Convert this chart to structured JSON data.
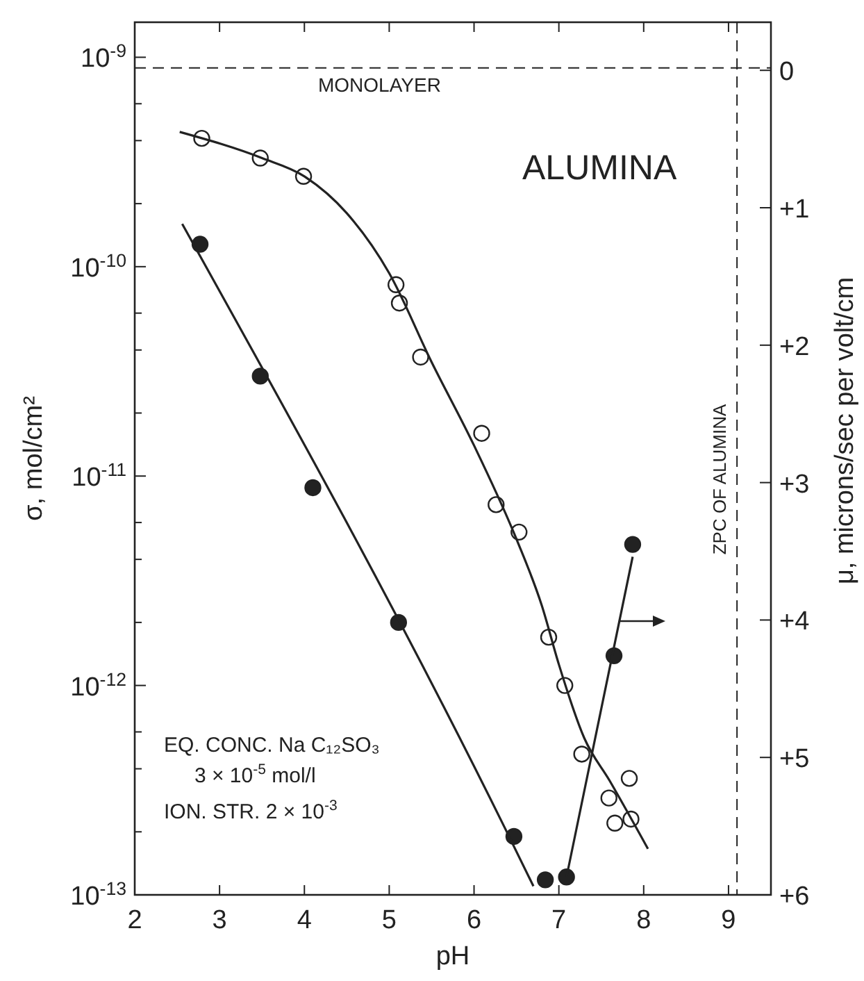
{
  "chart_data": {
    "type": "scatter",
    "xlabel": "pH",
    "ylabel": "σ, mol/cm²",
    "y2label": "μ, microns/sec per volt/cm",
    "xlim": [
      2,
      9.5
    ],
    "xticks": [
      2,
      3,
      4,
      5,
      6,
      7,
      8,
      9
    ],
    "log": "y",
    "ylim": [
      1e-13,
      1.47e-09
    ],
    "yticks": [
      {
        "value": 1e-13,
        "label": "10$^{-13}$"
      },
      {
        "value": 2e-13,
        "label": null
      },
      {
        "value": 4e-13,
        "label": null
      },
      {
        "value": 6e-13,
        "label": null
      },
      {
        "value": 1e-12,
        "label": "10$^{-12}$"
      },
      {
        "value": 2e-12,
        "label": null
      },
      {
        "value": 4e-12,
        "label": null
      },
      {
        "value": 6e-12,
        "label": null
      },
      {
        "value": 1e-11,
        "label": "10$^{-11}$"
      },
      {
        "value": 2e-11,
        "label": null
      },
      {
        "value": 4e-11,
        "label": null
      },
      {
        "value": 6e-11,
        "label": null
      },
      {
        "value": 1e-10,
        "label": "10$^{-10}$"
      },
      {
        "value": 2e-10,
        "label": null
      },
      {
        "value": 4e-10,
        "label": null
      },
      {
        "value": 6e-10,
        "label": null
      },
      {
        "value": 1e-09,
        "label": "10$^{-9}$"
      }
    ],
    "y2lim": [
      6,
      -0.35
    ],
    "y2ticks": [
      0,
      {
        "value": 1,
        "label": "+1"
      },
      {
        "value": 2,
        "label": "+2"
      },
      {
        "value": 3,
        "label": "+3"
      },
      {
        "value": 4,
        "label": "+4"
      },
      {
        "value": 5,
        "label": "+5"
      },
      {
        "value": 6,
        "label": "+6"
      }
    ],
    "marker": "circle",
    "grid": false,
    "series": [
      {
        "color": "#ffffff",
        "x": [
          2.79,
          3.48,
          3.99,
          5.08,
          5.12,
          5.37,
          6.09,
          6.26,
          6.53,
          6.88,
          7.07,
          7.27,
          7.83,
          7.59,
          7.66,
          7.85
        ],
        "values": [
          4.1e-10,
          3.3e-10,
          2.7e-10,
          8.2e-11,
          6.7e-11,
          3.7e-11,
          1.6e-11,
          7.3e-12,
          5.4e-12,
          1.7e-12,
          1e-12,
          4.7e-13,
          3.6e-13,
          2.9e-13,
          2.2e-13,
          2.3e-13
        ]
      },
      {
        "type": "line",
        "color": "#222222",
        "marker": "none",
        "line_style": "solid",
        "x": [
          2.53,
          3.5,
          4.0,
          4.5,
          5.0,
          5.5,
          6.0,
          6.5,
          6.8,
          7.0,
          7.3,
          7.6,
          8.05
        ],
        "values": [
          4.4e-10,
          3.3e-10,
          2.7e-10,
          1.8e-10,
          9.3e-11,
          3.5e-11,
          1.4e-11,
          5e-12,
          2.4e-12,
          1.26e-12,
          5.6e-13,
          3.5e-13,
          1.66e-13
        ]
      },
      {
        "color": "#222222",
        "x": [
          2.77,
          3.48,
          4.1,
          5.11,
          6.47,
          6.84
        ],
        "values": [
          1.28e-10,
          3e-11,
          8.8e-12,
          2e-12,
          1.9e-13,
          1.18e-13
        ]
      },
      {
        "type": "line",
        "color": "#222222",
        "marker": "none",
        "line_style": "solid",
        "x": [
          2.56,
          6.36,
          6.7
        ],
        "values": [
          1.6e-10,
          2.1e-13,
          1.1e-13
        ]
      },
      {
        "color": "#222222",
        "axis": "y2",
        "x": [
          7.09,
          7.65,
          7.87
        ],
        "values": [
          5.87,
          4.26,
          3.45
        ]
      },
      {
        "type": "line",
        "color": "#222222",
        "axis": "y2",
        "marker": "none",
        "line_style": "solid",
        "x": [
          7.08,
          7.87
        ],
        "values": [
          5.9,
          3.54
        ]
      }
    ],
    "ref_lines": [
      {
        "axis": "y",
        "value": 8.9e-10,
        "label": "MONOLAYER",
        "line_style": "dashed"
      },
      {
        "axis": "x",
        "value": 9.1,
        "label": "ZPC OF ALUMINA",
        "line_style": "dashed"
      }
    ],
    "annotations": [
      "ALUMINA",
      "EQ. CONC. Na C₁₂SO₃",
      "3 × 10$^{-5}$ mol/l",
      "ION. STR.  2 × 10$^{-3}$"
    ]
  }
}
